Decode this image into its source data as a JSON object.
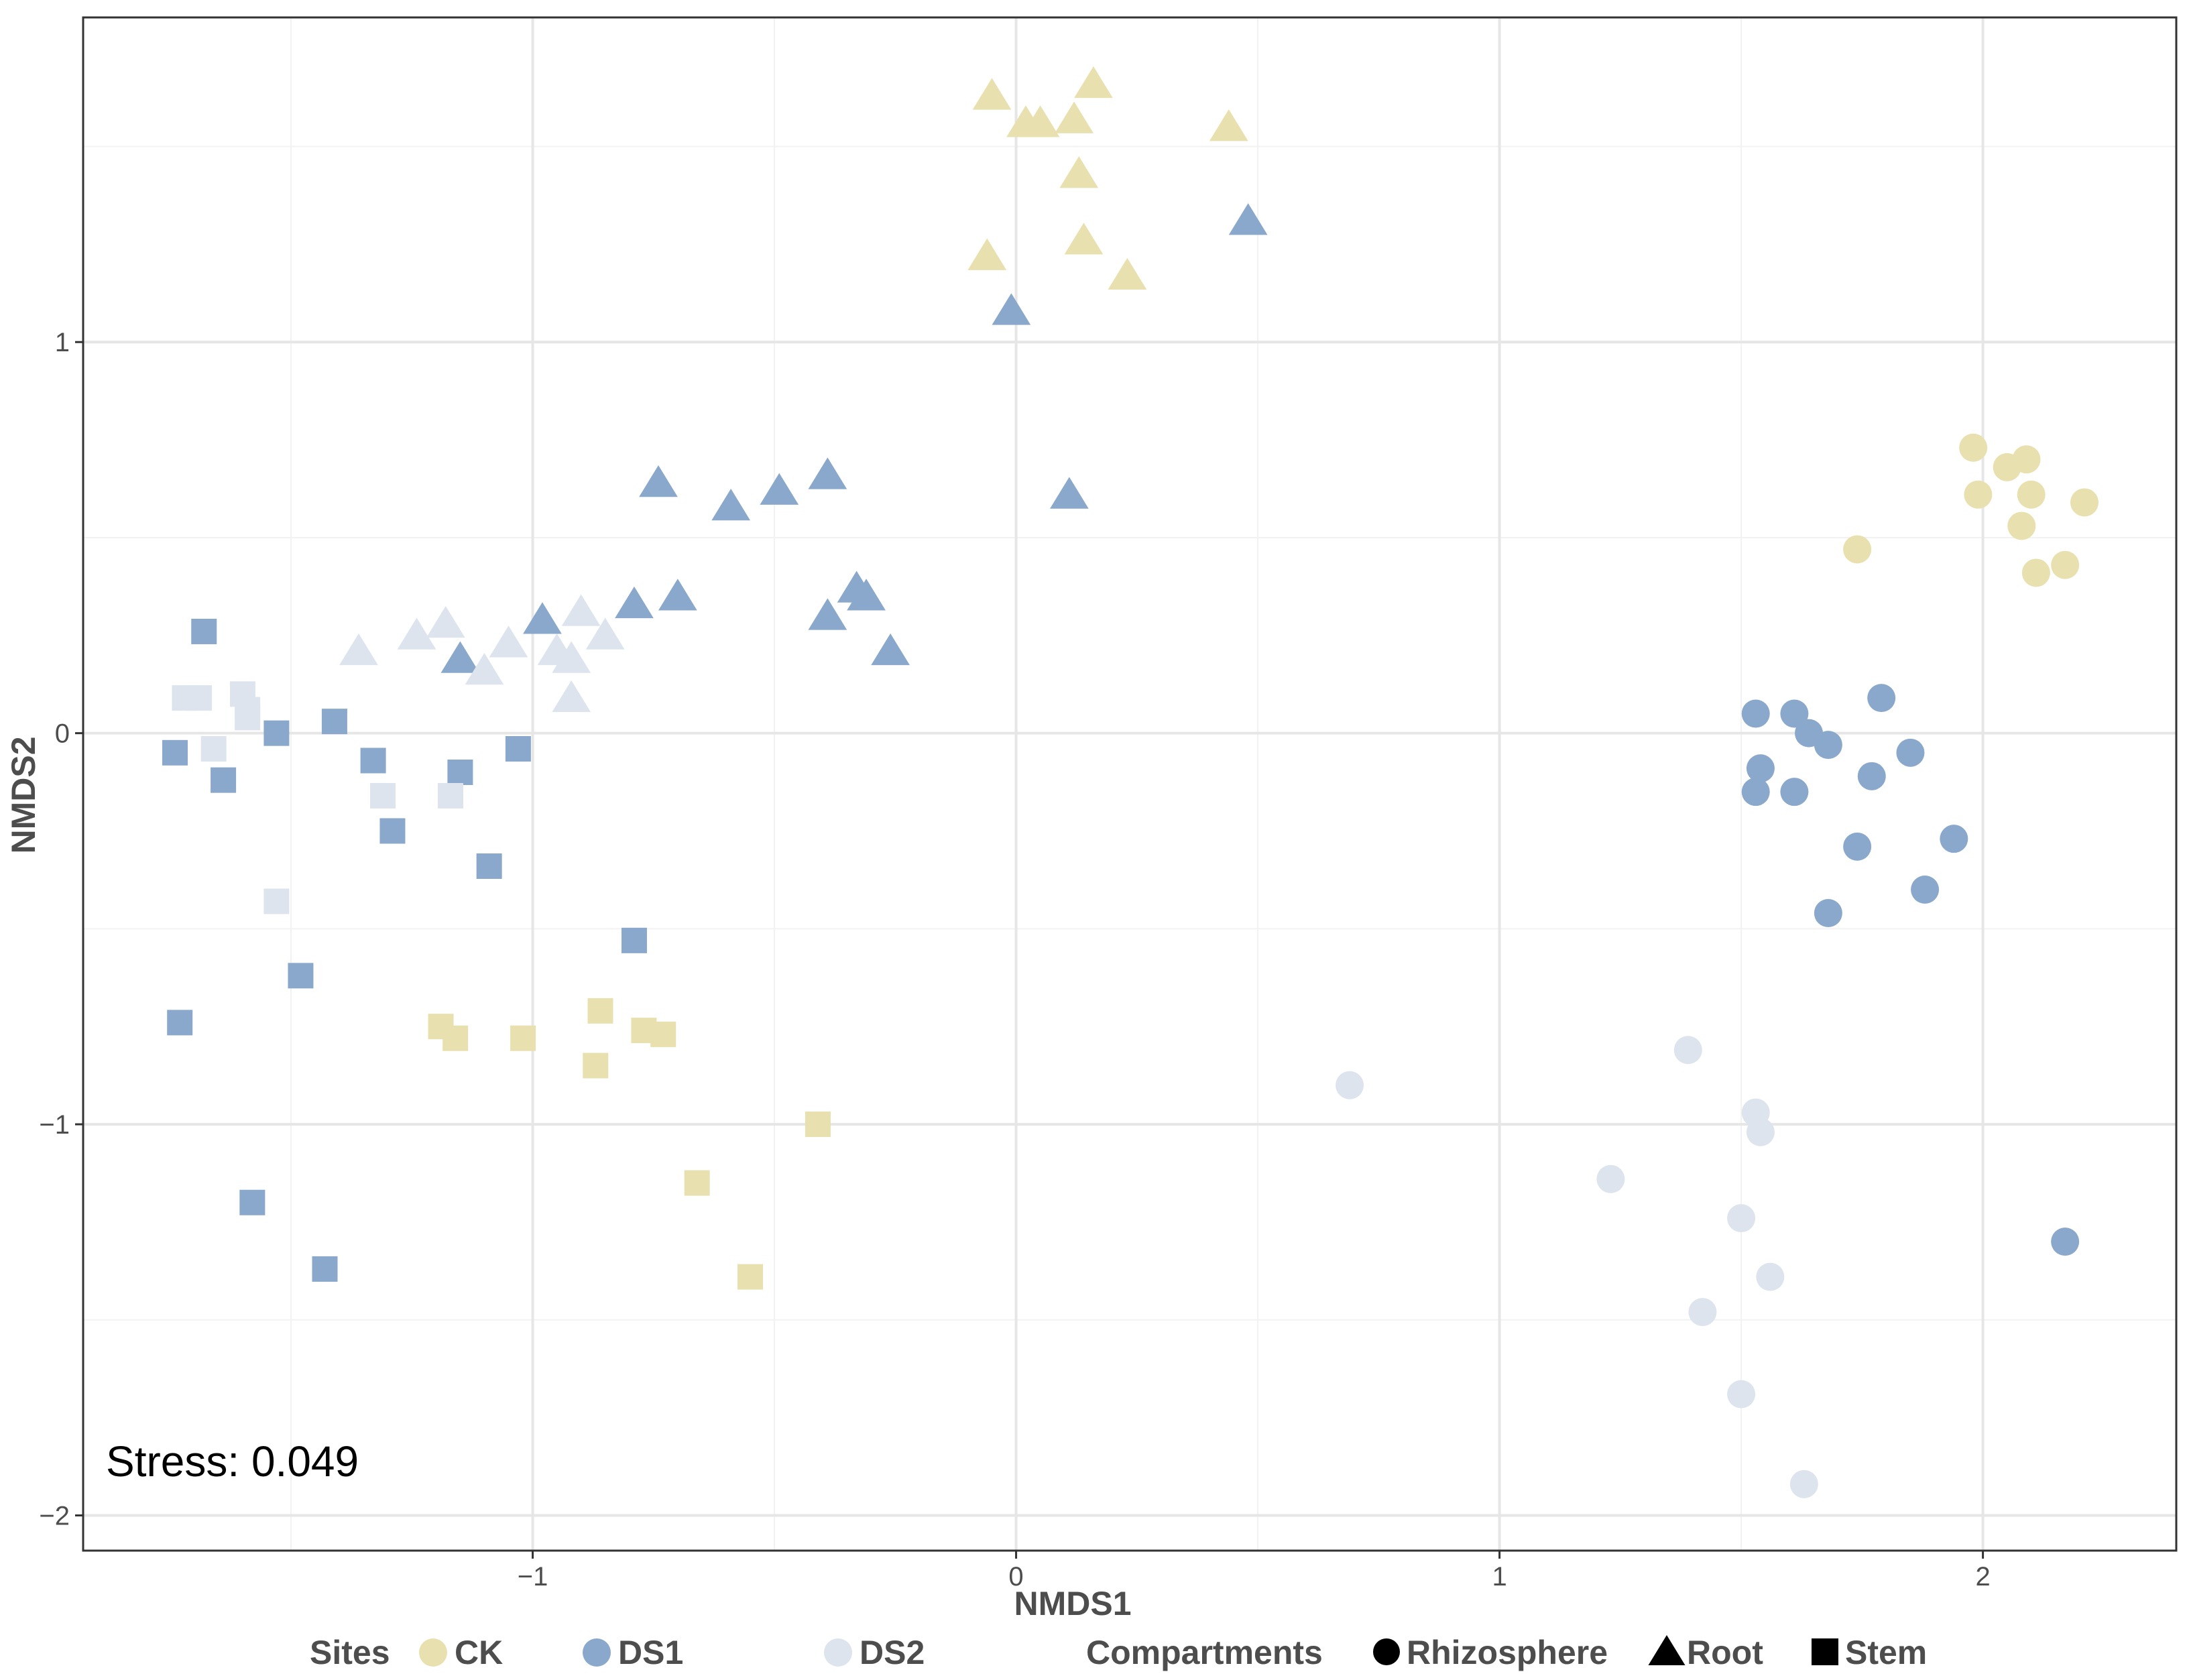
{
  "chart_data": {
    "type": "scatter",
    "title": "",
    "xlabel": "NMDS1",
    "ylabel": "NMDS2",
    "xlim": [
      -1.93,
      2.4
    ],
    "ylim": [
      -2.09,
      1.83
    ],
    "x_ticks": [
      -1,
      0,
      1,
      2
    ],
    "y_ticks": [
      -2,
      -1,
      0,
      1
    ],
    "x_tick_labels": [
      "−1",
      "0",
      "1",
      "2"
    ],
    "y_tick_labels": [
      "−2",
      "−1",
      "0",
      "1"
    ],
    "grid": true,
    "annotation": "Stress: 0.049",
    "legend": {
      "position": "bottom",
      "sites_title": "Sites",
      "compartments_title": "Compartments",
      "sites": [
        {
          "label": "CK",
          "color": "#e8e0ae"
        },
        {
          "label": "DS1",
          "color": "#8aa8cb"
        },
        {
          "label": "DS2",
          "color": "#dde4ee"
        }
      ],
      "compartments": [
        {
          "label": "Rhizosphere",
          "shape": "circle"
        },
        {
          "label": "Root",
          "shape": "triangle"
        },
        {
          "label": "Stem",
          "shape": "square"
        }
      ]
    },
    "series": [
      {
        "site": "CK",
        "compartment": "Root",
        "points": [
          [
            -0.05,
            1.63
          ],
          [
            0.02,
            1.56
          ],
          [
            0.05,
            1.56
          ],
          [
            0.12,
            1.57
          ],
          [
            0.16,
            1.66
          ],
          [
            0.44,
            1.55
          ],
          [
            0.13,
            1.43
          ],
          [
            -0.06,
            1.22
          ],
          [
            0.14,
            1.26
          ],
          [
            0.23,
            1.17
          ]
        ]
      },
      {
        "site": "DS1",
        "compartment": "Root",
        "points": [
          [
            -0.01,
            1.08
          ],
          [
            0.48,
            1.31
          ],
          [
            0.11,
            0.61
          ],
          [
            -0.74,
            0.64
          ],
          [
            -0.59,
            0.58
          ],
          [
            -0.49,
            0.62
          ],
          [
            -0.39,
            0.66
          ],
          [
            -0.98,
            0.29
          ],
          [
            -1.15,
            0.19
          ],
          [
            -0.79,
            0.33
          ],
          [
            -0.7,
            0.35
          ],
          [
            -0.39,
            0.3
          ],
          [
            -0.33,
            0.37
          ],
          [
            -0.31,
            0.35
          ],
          [
            -0.26,
            0.21
          ]
        ]
      },
      {
        "site": "DS2",
        "compartment": "Root",
        "points": [
          [
            -1.36,
            0.21
          ],
          [
            -1.24,
            0.25
          ],
          [
            -1.18,
            0.28
          ],
          [
            -1.1,
            0.16
          ],
          [
            -1.05,
            0.23
          ],
          [
            -0.95,
            0.21
          ],
          [
            -0.92,
            0.19
          ],
          [
            -0.9,
            0.31
          ],
          [
            -0.85,
            0.25
          ],
          [
            -0.92,
            0.09
          ]
        ]
      },
      {
        "site": "CK",
        "compartment": "Stem",
        "points": [
          [
            -1.19,
            -0.75
          ],
          [
            -1.16,
            -0.78
          ],
          [
            -1.02,
            -0.78
          ],
          [
            -0.86,
            -0.71
          ],
          [
            -0.87,
            -0.85
          ],
          [
            -0.77,
            -0.76
          ],
          [
            -0.73,
            -0.77
          ],
          [
            -0.41,
            -1.0
          ],
          [
            -0.66,
            -1.15
          ],
          [
            -0.55,
            -1.39
          ]
        ]
      },
      {
        "site": "DS1",
        "compartment": "Stem",
        "points": [
          [
            -1.68,
            0.26
          ],
          [
            -1.74,
            -0.05
          ],
          [
            -1.64,
            -0.12
          ],
          [
            -1.53,
            0.0
          ],
          [
            -1.41,
            0.03
          ],
          [
            -1.33,
            -0.07
          ],
          [
            -1.29,
            -0.25
          ],
          [
            -1.15,
            -0.1
          ],
          [
            -1.03,
            -0.04
          ],
          [
            -1.09,
            -0.34
          ],
          [
            -0.79,
            -0.53
          ],
          [
            -1.48,
            -0.62
          ],
          [
            -1.73,
            -0.74
          ],
          [
            -1.58,
            -1.2
          ],
          [
            -1.43,
            -1.37
          ]
        ]
      },
      {
        "site": "DS2",
        "compartment": "Stem",
        "points": [
          [
            -1.72,
            0.09
          ],
          [
            -1.69,
            0.09
          ],
          [
            -1.6,
            0.1
          ],
          [
            -1.59,
            0.06
          ],
          [
            -1.59,
            0.04
          ],
          [
            -1.66,
            -0.04
          ],
          [
            -1.31,
            -0.16
          ],
          [
            -1.17,
            -0.16
          ],
          [
            -1.53,
            -0.43
          ]
        ]
      },
      {
        "site": "CK",
        "compartment": "Rhizosphere",
        "points": [
          [
            1.98,
            0.73
          ],
          [
            2.05,
            0.68
          ],
          [
            2.09,
            0.7
          ],
          [
            1.99,
            0.61
          ],
          [
            2.1,
            0.61
          ],
          [
            2.08,
            0.53
          ],
          [
            2.21,
            0.59
          ],
          [
            1.74,
            0.47
          ],
          [
            2.11,
            0.41
          ],
          [
            2.17,
            0.43
          ]
        ]
      },
      {
        "site": "DS1",
        "compartment": "Rhizosphere",
        "points": [
          [
            1.53,
            0.05
          ],
          [
            1.61,
            0.05
          ],
          [
            1.64,
            0.0
          ],
          [
            1.68,
            -0.03
          ],
          [
            1.79,
            0.09
          ],
          [
            1.54,
            -0.09
          ],
          [
            1.53,
            -0.15
          ],
          [
            1.61,
            -0.15
          ],
          [
            1.77,
            -0.11
          ],
          [
            1.85,
            -0.05
          ],
          [
            1.74,
            -0.29
          ],
          [
            1.94,
            -0.27
          ],
          [
            1.88,
            -0.4
          ],
          [
            1.68,
            -0.46
          ],
          [
            2.17,
            -1.3
          ]
        ]
      },
      {
        "site": "DS2",
        "compartment": "Rhizosphere",
        "points": [
          [
            0.69,
            -0.9
          ],
          [
            1.39,
            -0.81
          ],
          [
            1.53,
            -0.97
          ],
          [
            1.54,
            -1.02
          ],
          [
            1.23,
            -1.14
          ],
          [
            1.5,
            -1.24
          ],
          [
            1.56,
            -1.39
          ],
          [
            1.42,
            -1.48
          ],
          [
            1.5,
            -1.69
          ],
          [
            1.63,
            -1.92
          ]
        ]
      }
    ]
  }
}
